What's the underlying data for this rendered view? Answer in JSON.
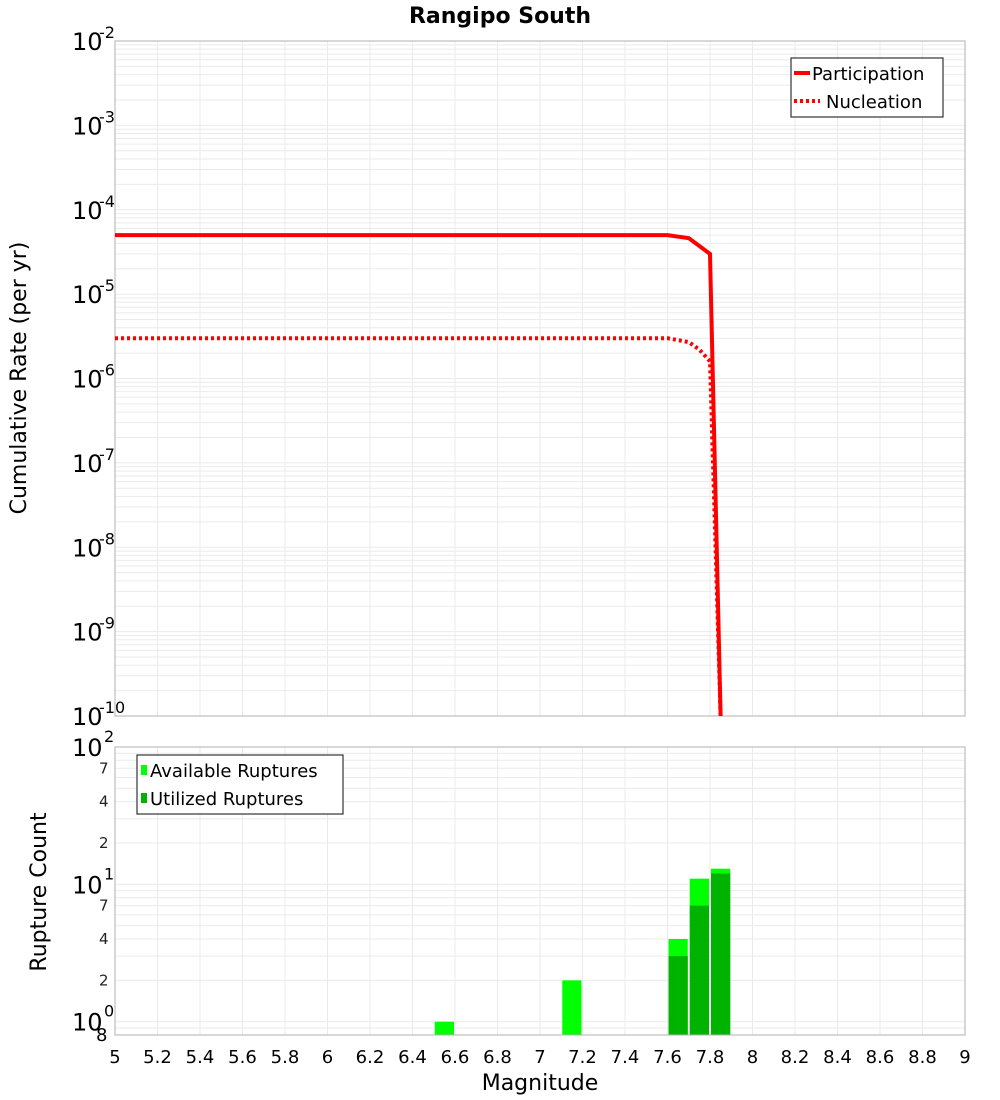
{
  "title": "Rangipo South",
  "colors": {
    "participation": "#ff0000",
    "nucleation": "#ff0000",
    "available": "#00ff00",
    "utilized": "#00b300",
    "grid": "#ebebeb",
    "frame": "#b0b0b0"
  },
  "chart_data": [
    {
      "type": "line",
      "title": "Rangipo South",
      "xlabel": "Magnitude",
      "ylabel": "Cumulative Rate (per yr)",
      "yscale": "log",
      "xlim": [
        5,
        9
      ],
      "ylim": [
        1e-10,
        0.01
      ],
      "grid": true,
      "legend_position": "top-right",
      "x_ticks": [
        "5",
        "5.2",
        "5.4",
        "5.6",
        "5.8",
        "6",
        "6.2",
        "6.4",
        "6.6",
        "6.8",
        "7",
        "7.2",
        "7.4",
        "7.6",
        "7.8",
        "8",
        "8.2",
        "8.4",
        "8.6",
        "8.8",
        "9"
      ],
      "y_ticks": [
        "10^-2",
        "10^-3",
        "10^-4",
        "10^-5",
        "10^-6",
        "10^-7",
        "10^-8",
        "10^-9",
        "10^-10"
      ],
      "series": [
        {
          "name": "Participation",
          "style": "solid",
          "x": [
            5.0,
            5.5,
            6.0,
            6.5,
            7.0,
            7.5,
            7.6,
            7.7,
            7.8,
            7.85
          ],
          "values": [
            5e-05,
            5e-05,
            5e-05,
            5e-05,
            5e-05,
            5e-05,
            5e-05,
            4.6e-05,
            3e-05,
            1e-10
          ]
        },
        {
          "name": "Nucleation",
          "style": "dotted",
          "x": [
            5.0,
            5.5,
            6.0,
            6.5,
            7.0,
            7.5,
            7.6,
            7.7,
            7.75,
            7.8,
            7.85
          ],
          "values": [
            3e-06,
            3e-06,
            3e-06,
            3e-06,
            3e-06,
            3e-06,
            3e-06,
            2.7e-06,
            2.2e-06,
            1.6e-06,
            1e-10
          ]
        }
      ]
    },
    {
      "type": "bar",
      "xlabel": "Magnitude",
      "ylabel": "Rupture Count",
      "yscale": "log",
      "xlim": [
        5,
        9
      ],
      "ylim": [
        0.8,
        100
      ],
      "grid": true,
      "legend_position": "top-left",
      "y_ticks": [
        "10^2",
        "7",
        "4",
        "2",
        "10^1",
        "7",
        "4",
        "2",
        "10^0",
        "8"
      ],
      "categories": [
        6.55,
        7.15,
        7.65,
        7.75,
        7.85
      ],
      "series": [
        {
          "name": "Available Ruptures",
          "values": [
            1,
            2,
            4,
            11,
            13
          ]
        },
        {
          "name": "Utilized Ruptures",
          "values": [
            0,
            0,
            3,
            7,
            12
          ]
        }
      ]
    }
  ],
  "top_plot": {
    "ylabel": "Cumulative Rate (per yr)",
    "legend": [
      {
        "label": "Participation"
      },
      {
        "label": "Nucleation"
      }
    ],
    "y_ticks": [
      {
        "base": "10",
        "exp": "-2"
      },
      {
        "base": "10",
        "exp": "-3"
      },
      {
        "base": "10",
        "exp": "-4"
      },
      {
        "base": "10",
        "exp": "-5"
      },
      {
        "base": "10",
        "exp": "-6"
      },
      {
        "base": "10",
        "exp": "-7"
      },
      {
        "base": "10",
        "exp": "-8"
      },
      {
        "base": "10",
        "exp": "-9"
      },
      {
        "base": "10",
        "exp": "-10"
      }
    ]
  },
  "bottom_plot": {
    "ylabel": "Rupture Count",
    "xlabel": "Magnitude",
    "legend": [
      {
        "label": "Available Ruptures"
      },
      {
        "label": "Utilized Ruptures"
      }
    ],
    "major_ticks": [
      {
        "base": "10",
        "exp": "2"
      },
      {
        "base": "10",
        "exp": "1"
      },
      {
        "base": "10",
        "exp": "0"
      }
    ],
    "minor_ticks": [
      "7",
      "4",
      "2",
      "7",
      "4",
      "2",
      "8"
    ],
    "x_ticks": [
      "5",
      "5.2",
      "5.4",
      "5.6",
      "5.8",
      "6",
      "6.2",
      "6.4",
      "6.6",
      "6.8",
      "7",
      "7.2",
      "7.4",
      "7.6",
      "7.8",
      "8",
      "8.2",
      "8.4",
      "8.6",
      "8.8",
      "9"
    ]
  }
}
